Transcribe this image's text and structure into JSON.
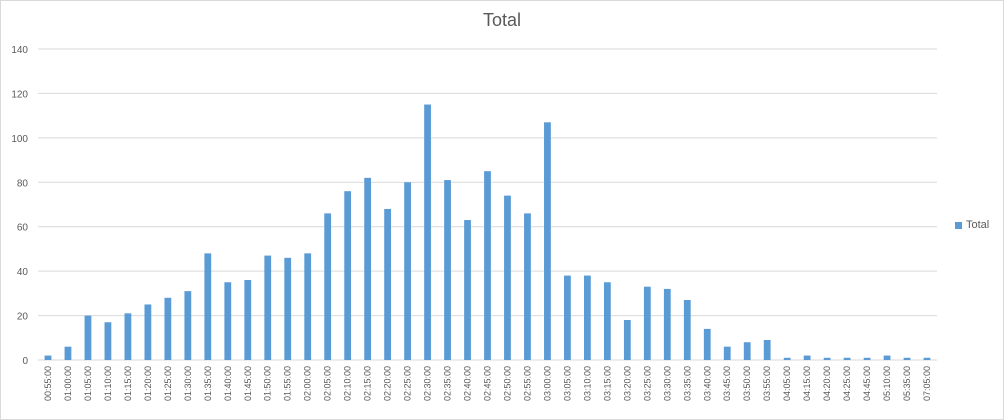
{
  "chart_data": {
    "type": "bar",
    "title": "Total",
    "xlabel": "",
    "ylabel": "",
    "ylim": [
      0,
      140
    ],
    "yticks": [
      0,
      20,
      40,
      60,
      80,
      100,
      120,
      140
    ],
    "grid": true,
    "legend_position": "right",
    "categories": [
      "00:55:00",
      "01:00:00",
      "01:05:00",
      "01:10:00",
      "01:15:00",
      "01:20:00",
      "01:25:00",
      "01:30:00",
      "01:35:00",
      "01:40:00",
      "01:45:00",
      "01:50:00",
      "01:55:00",
      "02:00:00",
      "02:05:00",
      "02:10:00",
      "02:15:00",
      "02:20:00",
      "02:25:00",
      "02:30:00",
      "02:35:00",
      "02:40:00",
      "02:45:00",
      "02:50:00",
      "02:55:00",
      "03:00:00",
      "03:05:00",
      "03:10:00",
      "03:15:00",
      "03:20:00",
      "03:25:00",
      "03:30:00",
      "03:35:00",
      "03:40:00",
      "03:45:00",
      "03:50:00",
      "03:55:00",
      "04:05:00",
      "04:15:00",
      "04:20:00",
      "04:25:00",
      "04:45:00",
      "05:10:00",
      "05:35:00",
      "07:05:00"
    ],
    "series": [
      {
        "name": "Total",
        "color": "#5b9bd5",
        "values": [
          2,
          6,
          20,
          17,
          21,
          25,
          28,
          31,
          48,
          35,
          36,
          47,
          46,
          48,
          66,
          76,
          82,
          68,
          80,
          115,
          81,
          63,
          85,
          74,
          66,
          107,
          38,
          38,
          35,
          18,
          33,
          32,
          27,
          14,
          6,
          8,
          9,
          1,
          2,
          1,
          1,
          1,
          2,
          1,
          1
        ]
      }
    ]
  }
}
